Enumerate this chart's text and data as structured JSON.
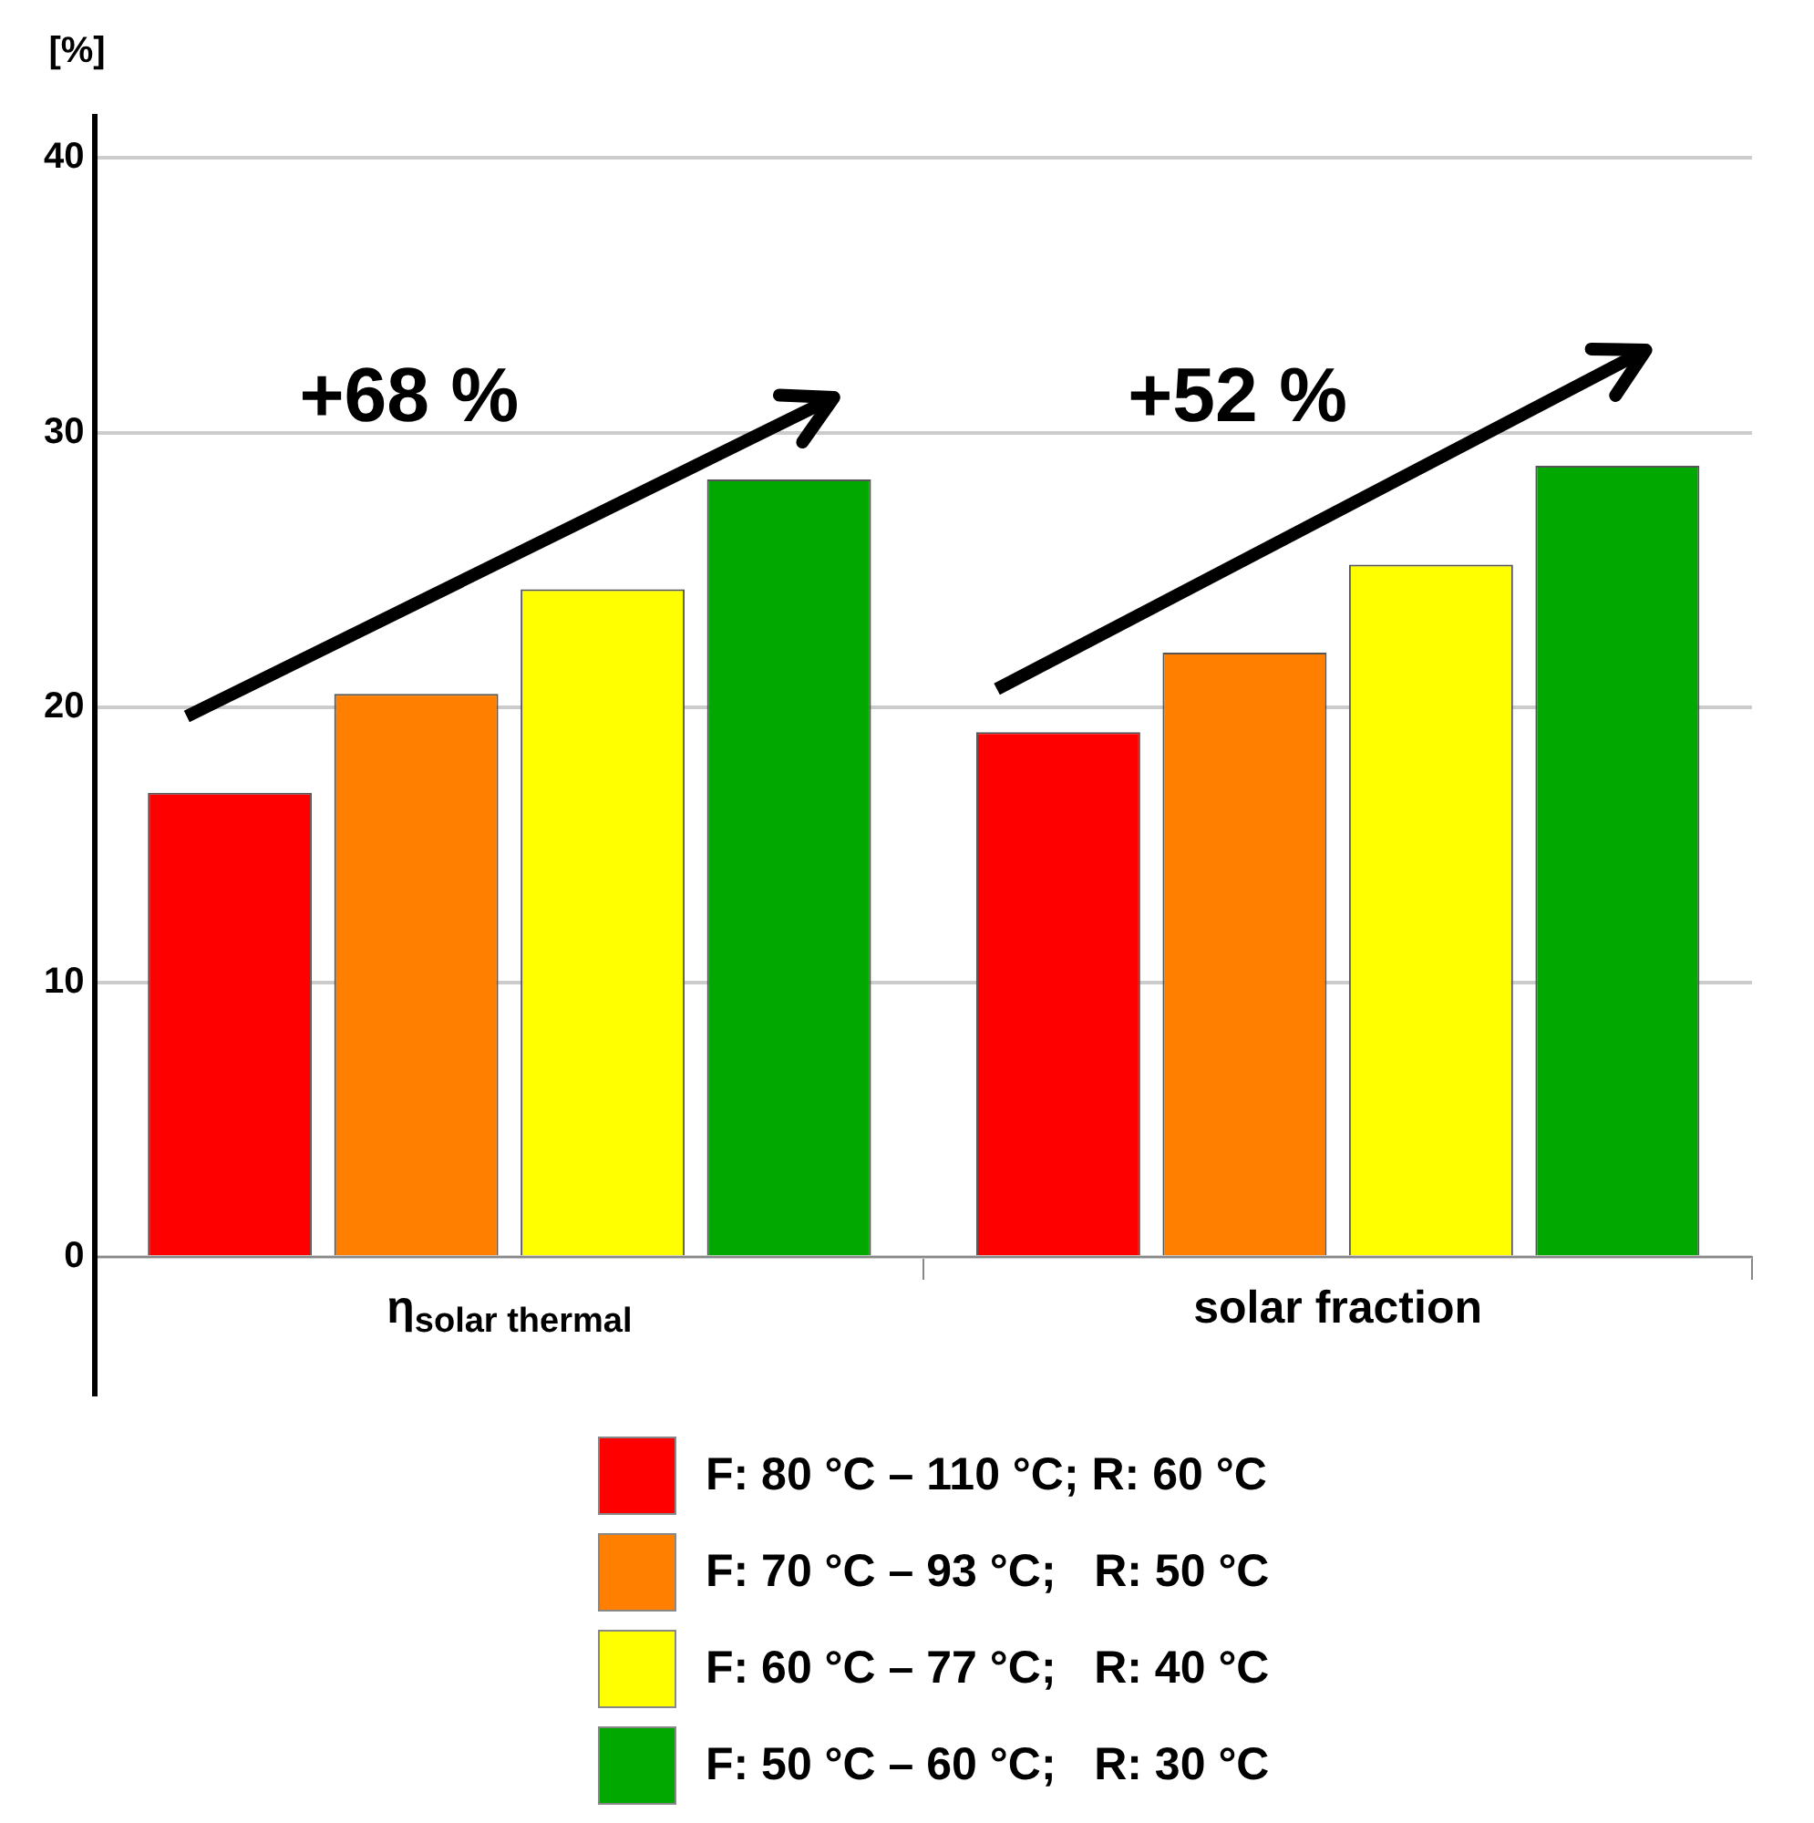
{
  "chart_data": {
    "type": "bar",
    "ylabel": "[%]",
    "categories": [
      "η$_{solar thermal}$",
      "solar fraction"
    ],
    "series": [
      {
        "name": "F: 80 °C – 110 °C; R: 60 °C",
        "color": "#ff0000",
        "values": [
          16.9,
          19.1
        ]
      },
      {
        "name": "F: 70 °C – 93 °C;   R: 50 °C",
        "color": "#ff8000",
        "values": [
          20.5,
          22.0
        ]
      },
      {
        "name": "F: 60 °C – 77 °C;   R: 40 °C",
        "color": "#ffff00",
        "values": [
          24.3,
          25.2
        ]
      },
      {
        "name": "F: 50 °C – 60 °C;   R: 30 °C",
        "color": "#00a800",
        "values": [
          28.3,
          28.8
        ]
      }
    ],
    "ylim": [
      -5,
      41.5
    ],
    "yticks": [
      0,
      10,
      20,
      30,
      40
    ],
    "grid": "y",
    "legend": "bottom",
    "annotations": [
      "+68 %",
      "+52 %"
    ]
  }
}
